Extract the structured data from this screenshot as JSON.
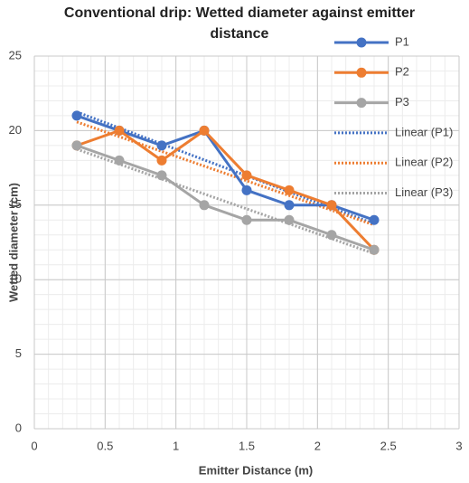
{
  "chart_data": {
    "type": "line",
    "title": "Conventional drip: Wetted diameter against emitter distance",
    "xlabel": "Emitter Distance (m)",
    "ylabel": "Wetted diameter (cm)",
    "x": [
      0.3,
      0.6,
      0.9,
      1.2,
      1.5,
      1.8,
      2.1,
      2.4
    ],
    "series": [
      {
        "name": "P1",
        "color": "#4472c4",
        "values": [
          21,
          20,
          19,
          20,
          16,
          15,
          15,
          14
        ]
      },
      {
        "name": "P2",
        "color": "#ed7d31",
        "values": [
          19,
          20,
          18,
          20,
          17,
          16,
          15,
          12
        ]
      },
      {
        "name": "P3",
        "color": "#a5a5a5",
        "values": [
          19,
          18,
          17,
          15,
          14,
          14,
          13,
          12
        ]
      }
    ],
    "trendlines": [
      {
        "name": "Linear (P1)",
        "color": "#4472c4",
        "x": [
          0.3,
          2.4
        ],
        "values": [
          21.25,
          13.75
        ]
      },
      {
        "name": "Linear (P2)",
        "color": "#ed7d31",
        "x": [
          0.3,
          2.4
        ],
        "values": [
          20.58,
          13.67
        ]
      },
      {
        "name": "Linear (P3)",
        "color": "#a5a5a5",
        "x": [
          0.3,
          2.4
        ],
        "values": [
          18.75,
          11.75
        ]
      }
    ],
    "xlim": [
      0,
      3
    ],
    "xticks": [
      0,
      0.5,
      1,
      1.5,
      2,
      2.5,
      3
    ],
    "ylim": [
      0,
      25
    ],
    "yticks": [
      0,
      5,
      10,
      15,
      20,
      25
    ],
    "grid": true,
    "minor_grid": true,
    "legend": "top-right"
  }
}
